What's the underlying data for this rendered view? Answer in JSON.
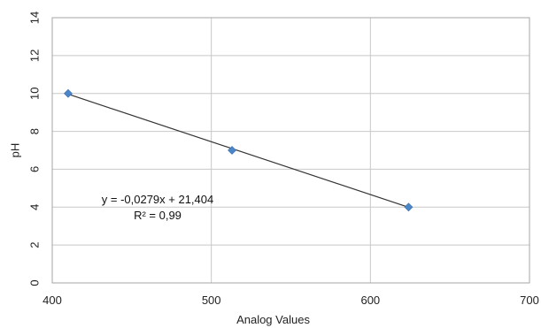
{
  "chart_data": {
    "type": "scatter",
    "xlabel": "Analog Values",
    "ylabel": "pH",
    "xlim": [
      400,
      700
    ],
    "ylim": [
      0,
      14
    ],
    "x_ticks": [
      400,
      500,
      600,
      700
    ],
    "y_ticks": [
      0,
      2,
      4,
      6,
      8,
      10,
      12,
      14
    ],
    "x_tick_labels": [
      "400",
      "500",
      "600",
      "700"
    ],
    "y_tick_labels": [
      "0",
      "2",
      "4",
      "6",
      "8",
      "10",
      "12",
      "14"
    ],
    "grid": "on",
    "legend": "none",
    "series": [
      {
        "points": [
          {
            "x": 410,
            "y": 10.0
          },
          {
            "x": 513,
            "y": 7.0
          },
          {
            "x": 624,
            "y": 4.0
          }
        ],
        "color": "#4a86c8"
      }
    ],
    "trendline": {
      "slope": -0.0279,
      "intercept": 21.404,
      "x_range": [
        410,
        624
      ],
      "color": "#333333"
    },
    "annotations": {
      "equation": "y = -0,0279x + 21,404",
      "r_squared": "R² = 0,99"
    }
  }
}
